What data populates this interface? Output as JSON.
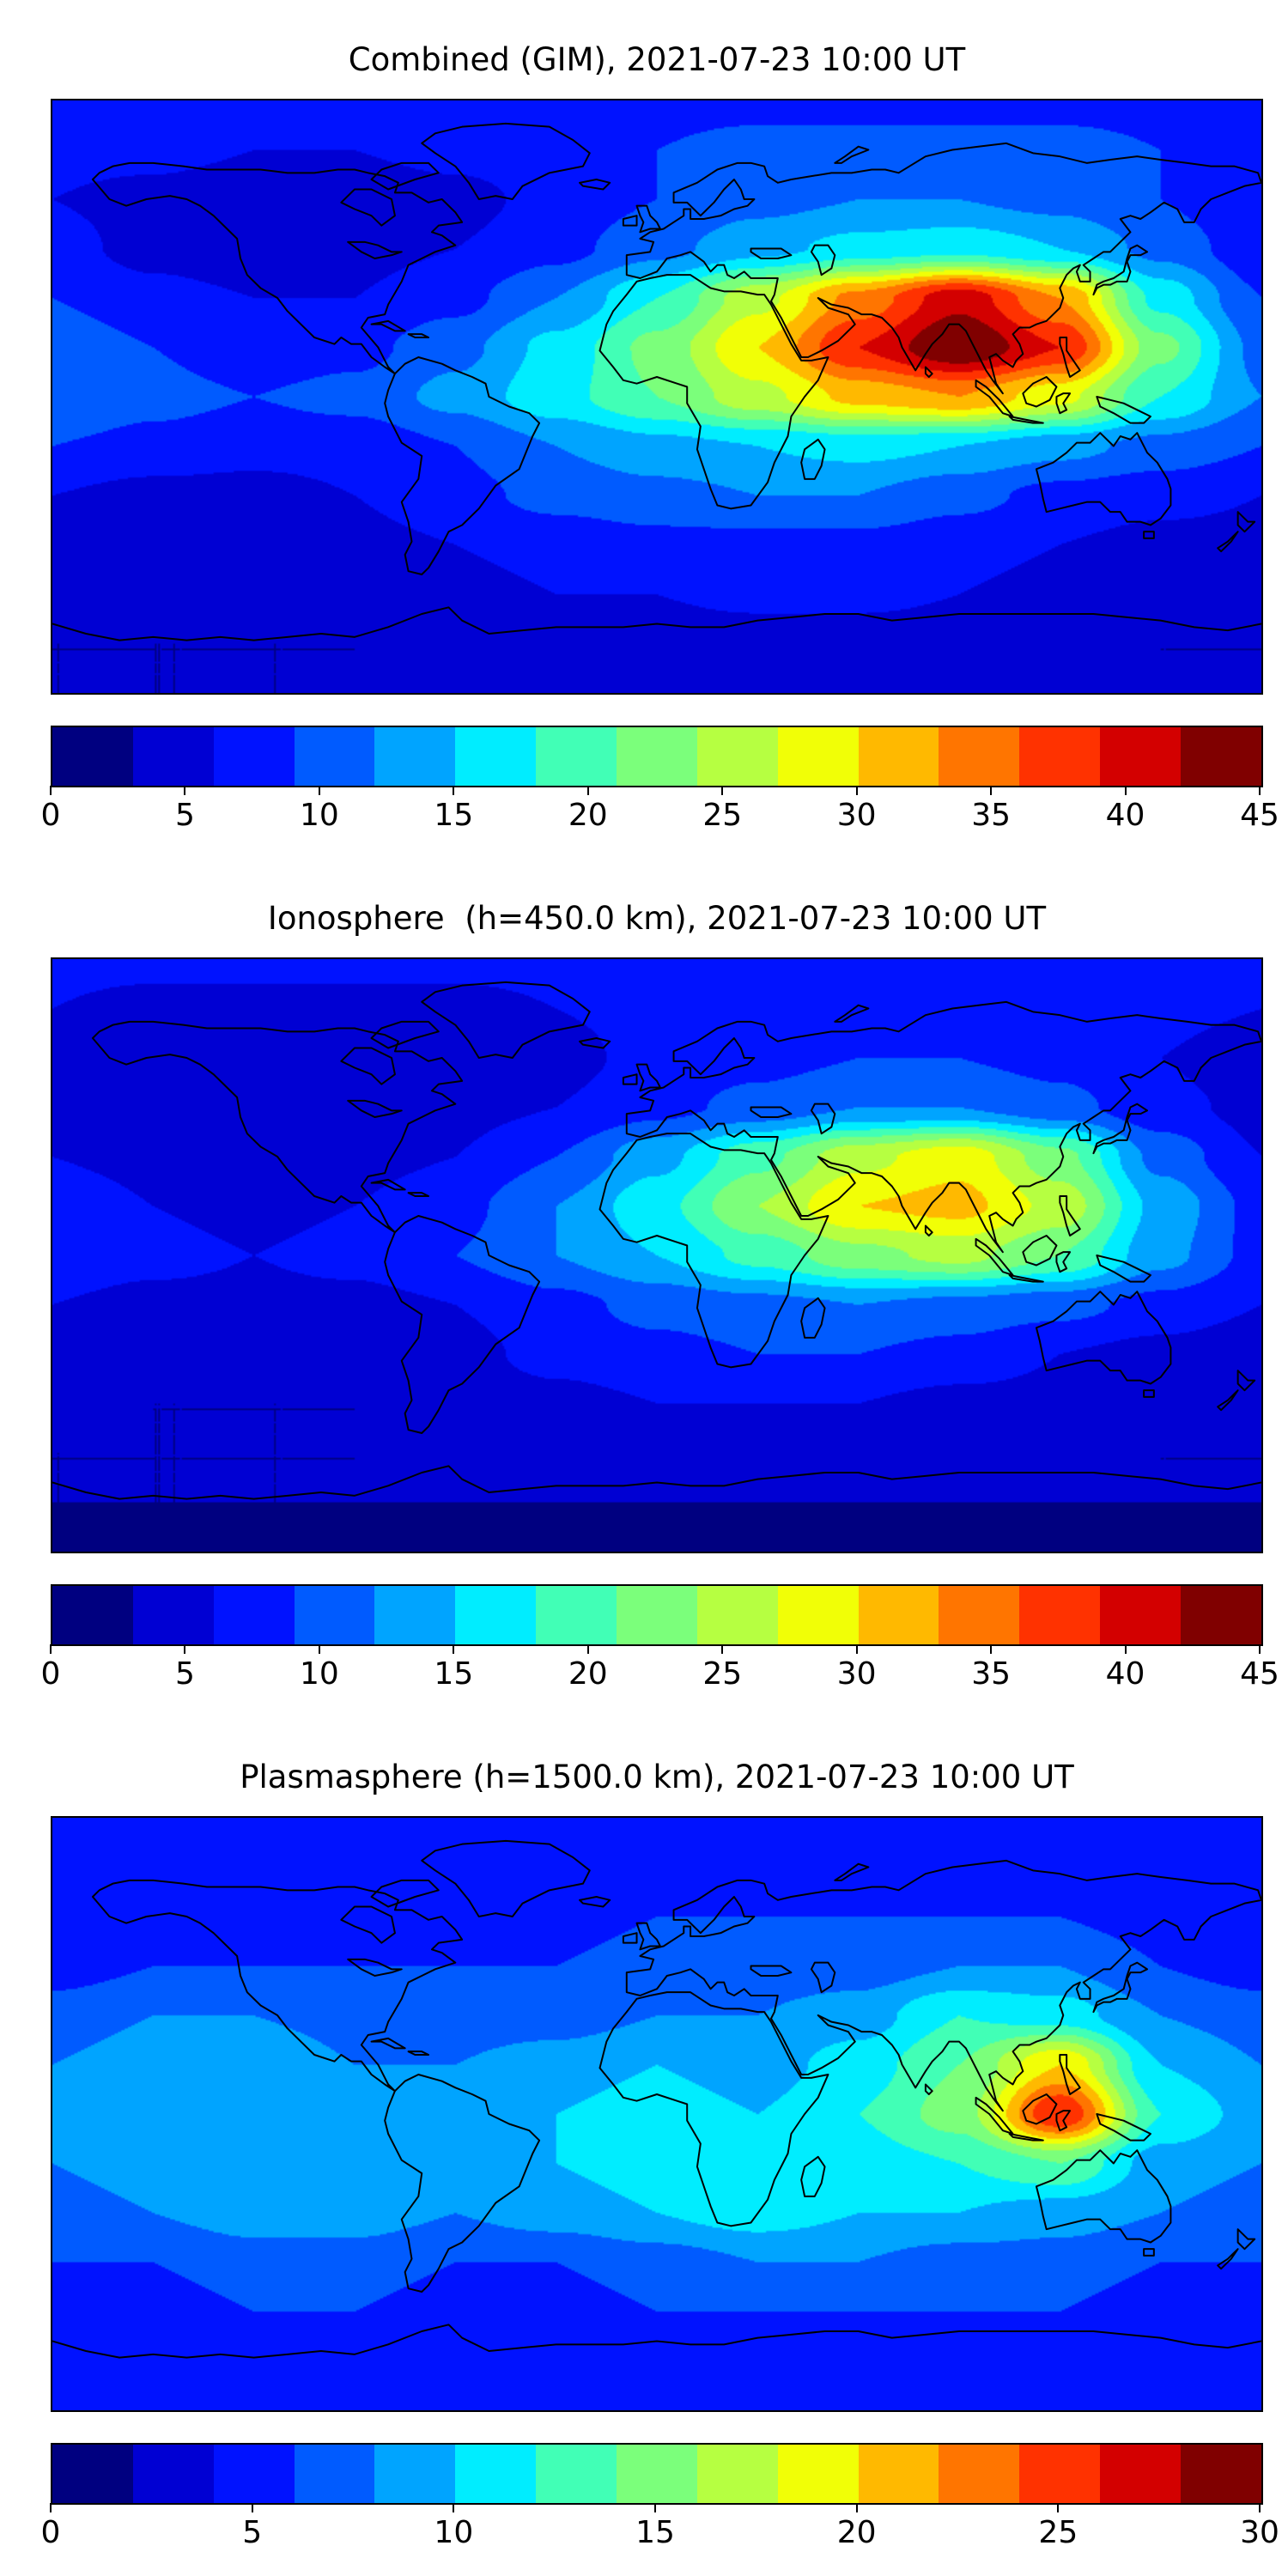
{
  "figure": {
    "background": "#ffffff",
    "text_color": "#000000",
    "panel_titles": [
      "Combined (GIM), 2021-07-23 10:00 UT",
      "Ionosphere  (h=450.0 km), 2021-07-23 10:00 UT",
      "Plasmasphere (h=1500.0 km), 2021-07-23 10:00 UT"
    ]
  },
  "colormap": {
    "name": "jet",
    "colors": [
      "#000080",
      "#0000d3",
      "#0012ff",
      "#005bff",
      "#00a4ff",
      "#00edff",
      "#41ffb6",
      "#7bff7b",
      "#b6ff41",
      "#f1ff06",
      "#ffb900",
      "#ff7500",
      "#ff3200",
      "#d30000",
      "#800000"
    ]
  },
  "chart_data": [
    {
      "type": "heatmap",
      "title": "Combined (GIM), 2021-07-23 10:00 UT",
      "projection": "equirectangular",
      "lon_range": [
        -180,
        180
      ],
      "lat_range": [
        -90,
        90
      ],
      "grid": "on-map-none",
      "colorbar": {
        "vmin": 0,
        "vmax": 45,
        "step": 3,
        "n_levels": 15,
        "ticks": [
          0,
          5,
          10,
          15,
          20,
          25,
          30,
          35,
          40,
          45
        ],
        "orientation": "horizontal"
      },
      "lons": [
        -180,
        -150,
        -120,
        -90,
        -60,
        -30,
        0,
        30,
        60,
        90,
        120,
        150,
        180
      ],
      "lats": [
        90,
        75,
        60,
        45,
        30,
        15,
        0,
        -15,
        -30,
        -45,
        -60,
        -75,
        -90
      ],
      "values": [
        [
          8,
          8,
          8,
          8,
          8,
          8,
          8,
          8,
          8,
          8,
          8,
          8,
          8
        ],
        [
          7,
          7,
          6,
          6,
          7,
          8,
          9,
          10,
          10,
          10,
          10,
          9,
          7
        ],
        [
          6,
          5,
          4,
          4,
          5,
          7,
          9,
          11,
          12,
          12,
          11,
          9,
          6
        ],
        [
          7,
          5,
          4,
          5,
          6,
          8,
          11,
          14,
          16,
          17,
          15,
          11,
          7
        ],
        [
          9,
          7,
          6,
          6,
          8,
          12,
          18,
          26,
          34,
          41,
          33,
          17,
          9
        ],
        [
          11,
          9,
          7,
          8,
          11,
          16,
          22,
          30,
          39,
          45,
          39,
          22,
          11
        ],
        [
          12,
          10,
          9,
          10,
          13,
          17,
          21,
          26,
          31,
          33,
          28,
          18,
          12
        ],
        [
          9,
          8,
          7,
          7,
          9,
          12,
          14,
          15,
          16,
          15,
          13,
          11,
          9
        ],
        [
          6,
          5,
          5,
          6,
          8,
          10,
          11,
          12,
          12,
          10,
          8,
          7,
          6
        ],
        [
          5,
          4,
          4,
          5,
          6,
          7,
          8,
          8,
          8,
          7,
          6,
          5,
          5
        ],
        [
          4,
          4,
          4,
          5,
          5,
          6,
          6,
          7,
          7,
          6,
          5,
          4,
          4
        ],
        [
          3,
          3,
          3,
          3,
          4,
          4,
          4,
          4,
          4,
          4,
          4,
          3,
          3
        ],
        [
          3,
          3,
          3,
          3,
          3,
          3,
          3,
          3,
          3,
          3,
          3,
          3,
          3
        ]
      ]
    },
    {
      "type": "heatmap",
      "title": "Ionosphere  (h=450.0 km), 2021-07-23 10:00 UT",
      "projection": "equirectangular",
      "lon_range": [
        -180,
        180
      ],
      "lat_range": [
        -90,
        90
      ],
      "colorbar": {
        "vmin": 0,
        "vmax": 45,
        "step": 3,
        "n_levels": 15,
        "ticks": [
          0,
          5,
          10,
          15,
          20,
          25,
          30,
          35,
          40,
          45
        ],
        "orientation": "horizontal"
      },
      "lons": [
        -180,
        -150,
        -120,
        -90,
        -60,
        -30,
        0,
        30,
        60,
        90,
        120,
        150,
        180
      ],
      "lats": [
        90,
        75,
        60,
        45,
        30,
        15,
        0,
        -15,
        -30,
        -45,
        -60,
        -75,
        -90
      ],
      "values": [
        [
          7,
          7,
          7,
          7,
          7,
          7,
          7,
          7,
          7,
          7,
          7,
          7,
          7
        ],
        [
          6,
          5,
          5,
          5,
          5,
          6,
          7,
          8,
          8,
          8,
          8,
          7,
          6
        ],
        [
          4,
          4,
          3,
          3,
          4,
          5,
          7,
          8,
          9,
          9,
          8,
          6,
          4
        ],
        [
          5,
          4,
          3,
          4,
          5,
          6,
          8,
          10,
          12,
          12,
          10,
          7,
          5
        ],
        [
          6,
          5,
          4,
          5,
          6,
          9,
          14,
          20,
          26,
          29,
          22,
          11,
          6
        ],
        [
          8,
          6,
          5,
          6,
          8,
          12,
          17,
          24,
          30,
          31,
          26,
          14,
          8
        ],
        [
          8,
          7,
          6,
          7,
          9,
          12,
          15,
          19,
          23,
          25,
          21,
          13,
          8
        ],
        [
          6,
          5,
          5,
          5,
          6,
          8,
          10,
          11,
          12,
          11,
          10,
          8,
          6
        ],
        [
          4,
          4,
          4,
          4,
          5,
          7,
          8,
          9,
          9,
          8,
          6,
          5,
          4
        ],
        [
          4,
          3,
          3,
          3,
          4,
          5,
          6,
          6,
          6,
          5,
          5,
          4,
          4
        ],
        [
          3,
          3,
          3,
          3,
          4,
          4,
          5,
          5,
          5,
          4,
          4,
          3,
          3
        ],
        [
          3,
          3,
          3,
          3,
          3,
          3,
          3,
          3,
          3,
          3,
          3,
          3,
          3
        ],
        [
          2,
          2,
          2,
          2,
          2,
          2,
          2,
          2,
          2,
          2,
          2,
          2,
          2
        ]
      ]
    },
    {
      "type": "heatmap",
      "title": "Plasmasphere (h=1500.0 km), 2021-07-23 10:00 UT",
      "projection": "equirectangular",
      "lon_range": [
        -180,
        180
      ],
      "lat_range": [
        -90,
        90
      ],
      "colorbar": {
        "vmin": 0,
        "vmax": 30,
        "step": 2,
        "n_levels": 15,
        "ticks": [
          0,
          5,
          10,
          15,
          20,
          25,
          30
        ],
        "orientation": "horizontal"
      },
      "lons": [
        -180,
        -150,
        -120,
        -90,
        -60,
        -30,
        0,
        30,
        60,
        90,
        120,
        150,
        180
      ],
      "lats": [
        90,
        75,
        60,
        45,
        30,
        15,
        0,
        -15,
        -30,
        -45,
        -60,
        -75,
        -90
      ],
      "values": [
        [
          5,
          5,
          5,
          5,
          5,
          5,
          5,
          5,
          5,
          5,
          5,
          5,
          5
        ],
        [
          4,
          4,
          4,
          5,
          5,
          5,
          5,
          5,
          5,
          5,
          5,
          5,
          4
        ],
        [
          4,
          4,
          5,
          5,
          5,
          5,
          6,
          6,
          6,
          6,
          6,
          5,
          4
        ],
        [
          5,
          6,
          6,
          6,
          6,
          6,
          7,
          7,
          7,
          8,
          8,
          6,
          5
        ],
        [
          7,
          8,
          8,
          7,
          7,
          7,
          8,
          8,
          9,
          12,
          11,
          8,
          7
        ],
        [
          8,
          9,
          10,
          8,
          8,
          9,
          10,
          9,
          11,
          14,
          20,
          10,
          8
        ],
        [
          9,
          10,
          10,
          9,
          9,
          10,
          11,
          10,
          12,
          15,
          26,
          12,
          9
        ],
        [
          8,
          9,
          10,
          10,
          9,
          10,
          11,
          12,
          11,
          12,
          14,
          9,
          8
        ],
        [
          7,
          8,
          9,
          9,
          8,
          9,
          10,
          11,
          10,
          10,
          9,
          8,
          7
        ],
        [
          6,
          6,
          7,
          7,
          6,
          6,
          7,
          8,
          8,
          7,
          7,
          6,
          6
        ],
        [
          5,
          5,
          6,
          6,
          5,
          5,
          6,
          6,
          6,
          6,
          6,
          5,
          5
        ],
        [
          4,
          4,
          4,
          4,
          4,
          4,
          5,
          5,
          5,
          5,
          5,
          4,
          4
        ],
        [
          4,
          4,
          4,
          4,
          4,
          4,
          4,
          4,
          4,
          4,
          4,
          4,
          4
        ]
      ]
    }
  ]
}
